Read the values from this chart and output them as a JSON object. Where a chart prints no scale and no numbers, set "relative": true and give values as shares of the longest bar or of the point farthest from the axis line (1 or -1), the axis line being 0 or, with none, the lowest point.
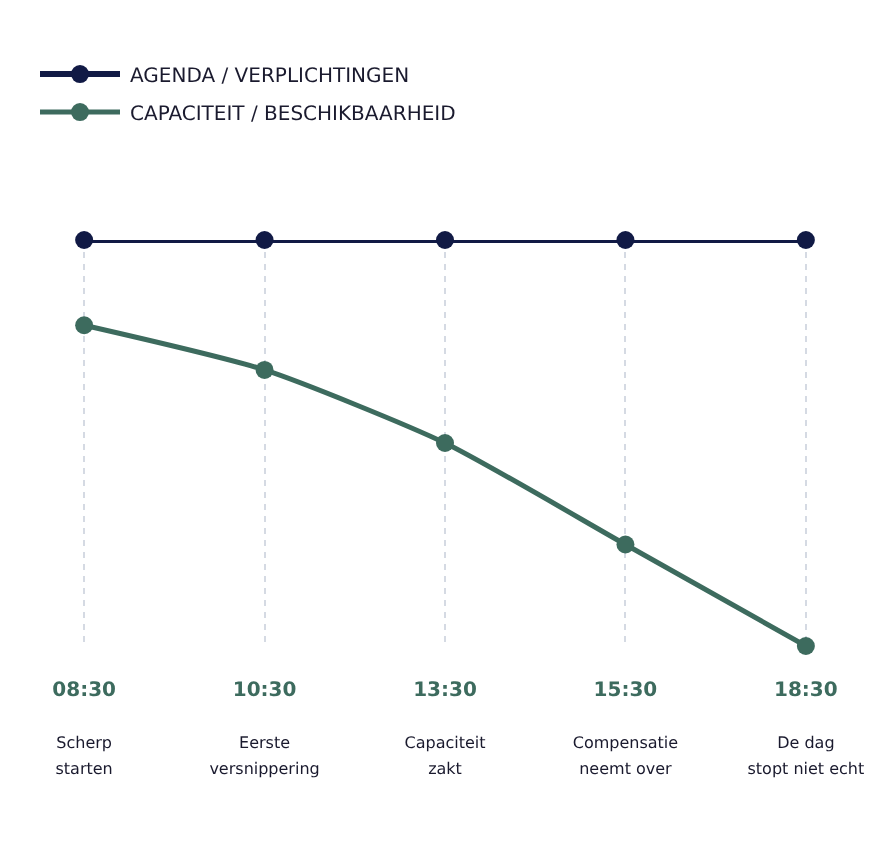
{
  "chart_data": {
    "type": "line",
    "relative": true,
    "categories": [
      "08:30\nScherp\nstarten",
      "10:30\nEerste\nversnippering",
      "13:30\nCapaciteit\nzakt",
      "15:30\nCompensatie\nneemt over",
      "18:30\nDe dag\nstopt niet echt"
    ],
    "series": [
      {
        "name": "AGENDA / VERPLICHTINGEN",
        "color": "#111a45",
        "values": [
          1,
          1,
          1,
          1,
          1
        ]
      },
      {
        "name": "CAPACITEIT / BESCHIKBAARHEID",
        "color": "#3d6b5e",
        "values": [
          0.79,
          0.68,
          0.5,
          0.25,
          0
        ]
      }
    ],
    "marker": "circle",
    "line_style": "solid",
    "grid": "x",
    "legend": "top left"
  }
}
